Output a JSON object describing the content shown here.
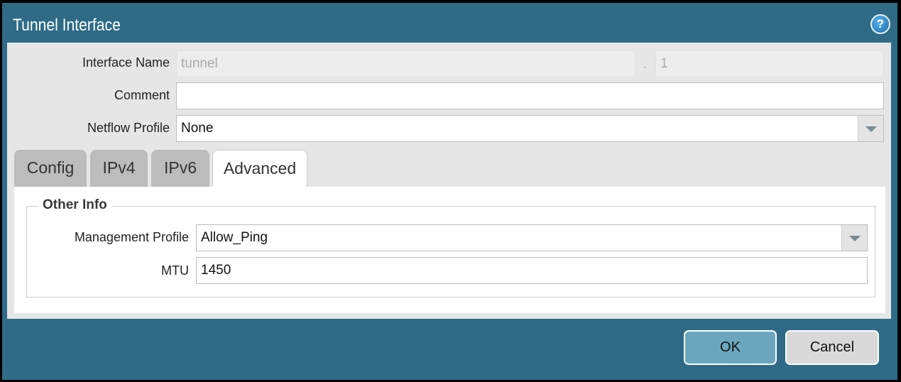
{
  "dialog": {
    "title": "Tunnel Interface",
    "help_icon": "help-icon"
  },
  "form": {
    "interface_name_label": "Interface Name",
    "interface_name_value": "tunnel",
    "separator": ".",
    "interface_suffix": "1",
    "comment_label": "Comment",
    "comment_value": "",
    "netflow_label": "Netflow Profile",
    "netflow_value": "None"
  },
  "tabs": [
    {
      "label": "Config"
    },
    {
      "label": "IPv4"
    },
    {
      "label": "IPv6"
    },
    {
      "label": "Advanced",
      "active": true
    }
  ],
  "advanced": {
    "group_title": "Other Info",
    "mgmt_label": "Management Profile",
    "mgmt_value": "Allow_Ping",
    "mtu_label": "MTU",
    "mtu_value": "1450"
  },
  "buttons": {
    "ok": "OK",
    "cancel": "Cancel"
  },
  "colors": {
    "header": "#2f6b87",
    "ok_button": "#6aa7bd",
    "cancel_button": "#d9d9d9"
  }
}
